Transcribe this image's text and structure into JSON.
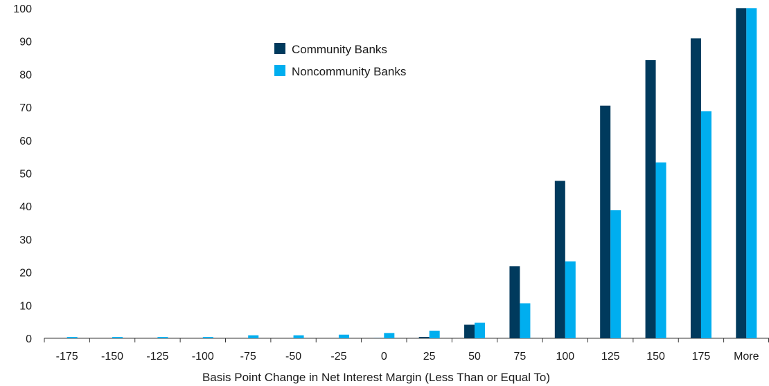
{
  "chart_data": {
    "type": "bar",
    "title": "",
    "xlabel": "Basis Point Change in Net Interest Margin (Less Than or Equal To)",
    "ylabel": "",
    "ylim": [
      0,
      100
    ],
    "yticks": [
      0,
      10,
      20,
      30,
      40,
      50,
      60,
      70,
      80,
      90,
      100
    ],
    "categories": [
      "-175",
      "-150",
      "-125",
      "-100",
      "-75",
      "-50",
      "-25",
      "0",
      "25",
      "50",
      "75",
      "100",
      "125",
      "150",
      "175",
      "More"
    ],
    "series": [
      {
        "name": "Community Banks",
        "color": "#003a5d",
        "values": [
          0,
          0,
          0,
          0,
          0,
          0,
          0,
          0.1,
          0.4,
          4.1,
          21.8,
          47.7,
          70.5,
          84.3,
          90.9,
          100
        ]
      },
      {
        "name": "Noncommunity Banks",
        "color": "#00aeef",
        "values": [
          0.4,
          0.4,
          0.4,
          0.4,
          0.9,
          0.9,
          1.1,
          1.6,
          2.3,
          4.7,
          10.6,
          23.3,
          38.8,
          53.3,
          68.8,
          100
        ]
      }
    ],
    "legend_position": "top-center",
    "grid": false
  }
}
